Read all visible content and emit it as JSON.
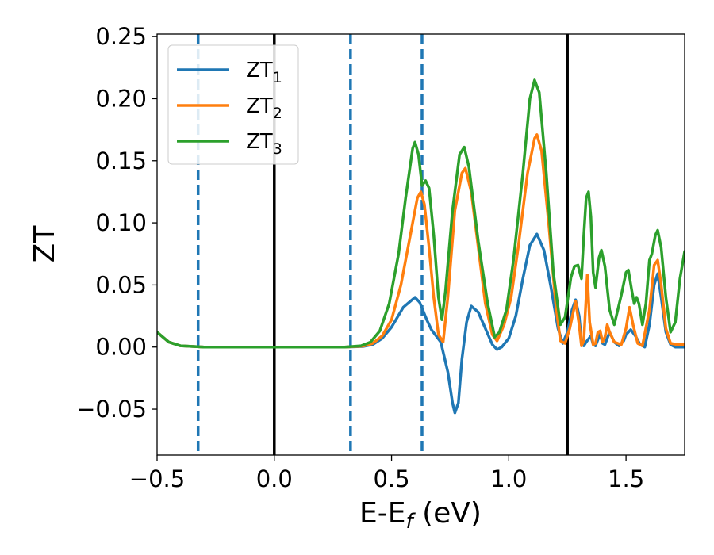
{
  "chart_data": {
    "type": "line",
    "xlabel": "E-E",
    "xlabel_sub": "f",
    "xlabel_unit": " (eV)",
    "ylabel": "ZT",
    "xlim": [
      -0.5,
      1.75
    ],
    "ylim": [
      -0.087,
      0.252
    ],
    "xticks": [
      -0.5,
      0.0,
      0.5,
      1.0,
      1.5
    ],
    "xtick_labels": [
      "−0.5",
      "0.0",
      "0.5",
      "1.0",
      "1.5"
    ],
    "yticks": [
      -0.05,
      0.0,
      0.05,
      0.1,
      0.15,
      0.2,
      0.25
    ],
    "ytick_labels": [
      "−0.05",
      "0.00",
      "0.05",
      "0.10",
      "0.15",
      "0.20",
      "0.25"
    ],
    "grid": false,
    "legend_position": "top-left",
    "vlines": [
      {
        "x": -0.325,
        "style": "dashed",
        "color": "#1f77b4"
      },
      {
        "x": 0.0,
        "style": "solid",
        "color": "#000000"
      },
      {
        "x": 0.325,
        "style": "dashed",
        "color": "#1f77b4"
      },
      {
        "x": 0.63,
        "style": "dashed",
        "color": "#1f77b4"
      },
      {
        "x": 1.25,
        "style": "solid",
        "color": "#000000"
      }
    ],
    "series": [
      {
        "name": "ZT",
        "subscript": "1",
        "color": "#1f77b4",
        "points": [
          [
            -0.5,
            0.012
          ],
          [
            -0.45,
            0.004
          ],
          [
            -0.4,
            0.001
          ],
          [
            -0.3,
            0.0
          ],
          [
            0.0,
            0.0
          ],
          [
            0.3,
            0.0
          ],
          [
            0.38,
            0.0005
          ],
          [
            0.42,
            0.002
          ],
          [
            0.46,
            0.007
          ],
          [
            0.5,
            0.016
          ],
          [
            0.55,
            0.032
          ],
          [
            0.6,
            0.04
          ],
          [
            0.62,
            0.036
          ],
          [
            0.65,
            0.022
          ],
          [
            0.67,
            0.014
          ],
          [
            0.69,
            0.009
          ],
          [
            0.71,
            0.004
          ],
          [
            0.74,
            -0.02
          ],
          [
            0.76,
            -0.045
          ],
          [
            0.77,
            -0.053
          ],
          [
            0.785,
            -0.045
          ],
          [
            0.8,
            -0.01
          ],
          [
            0.82,
            0.02
          ],
          [
            0.84,
            0.033
          ],
          [
            0.87,
            0.028
          ],
          [
            0.9,
            0.015
          ],
          [
            0.93,
            0.002
          ],
          [
            0.95,
            -0.002
          ],
          [
            0.97,
            0.0
          ],
          [
            1.0,
            0.007
          ],
          [
            1.03,
            0.025
          ],
          [
            1.06,
            0.055
          ],
          [
            1.09,
            0.082
          ],
          [
            1.12,
            0.091
          ],
          [
            1.15,
            0.078
          ],
          [
            1.18,
            0.048
          ],
          [
            1.21,
            0.015
          ],
          [
            1.23,
            0.003
          ],
          [
            1.25,
            0.012
          ],
          [
            1.27,
            0.03
          ],
          [
            1.285,
            0.038
          ],
          [
            1.3,
            0.025
          ],
          [
            1.31,
            0.004
          ],
          [
            1.32,
            0.001
          ],
          [
            1.33,
            0.004
          ],
          [
            1.35,
            0.009
          ],
          [
            1.36,
            0.002
          ],
          [
            1.37,
            0.001
          ],
          [
            1.38,
            0.006
          ],
          [
            1.39,
            0.011
          ],
          [
            1.4,
            0.003
          ],
          [
            1.41,
            0.002
          ],
          [
            1.43,
            0.012
          ],
          [
            1.45,
            0.004
          ],
          [
            1.47,
            0.001
          ],
          [
            1.49,
            0.005
          ],
          [
            1.5,
            0.01
          ],
          [
            1.52,
            0.014
          ],
          [
            1.54,
            0.009
          ],
          [
            1.56,
            0.002
          ],
          [
            1.58,
            0.0
          ],
          [
            1.6,
            0.018
          ],
          [
            1.62,
            0.05
          ],
          [
            1.635,
            0.059
          ],
          [
            1.65,
            0.04
          ],
          [
            1.67,
            0.012
          ],
          [
            1.69,
            0.002
          ],
          [
            1.71,
            0.0
          ],
          [
            1.75,
            0.0
          ]
        ]
      },
      {
        "name": "ZT",
        "subscript": "2",
        "color": "#ff7f0e",
        "points": [
          [
            -0.5,
            0.012
          ],
          [
            -0.45,
            0.004
          ],
          [
            -0.4,
            0.001
          ],
          [
            -0.3,
            0.0
          ],
          [
            0.0,
            0.0
          ],
          [
            0.3,
            0.0
          ],
          [
            0.38,
            0.0008
          ],
          [
            0.42,
            0.003
          ],
          [
            0.46,
            0.009
          ],
          [
            0.5,
            0.022
          ],
          [
            0.54,
            0.05
          ],
          [
            0.58,
            0.09
          ],
          [
            0.61,
            0.12
          ],
          [
            0.625,
            0.125
          ],
          [
            0.64,
            0.115
          ],
          [
            0.66,
            0.08
          ],
          [
            0.68,
            0.04
          ],
          [
            0.7,
            0.01
          ],
          [
            0.72,
            0.004
          ],
          [
            0.74,
            0.04
          ],
          [
            0.77,
            0.11
          ],
          [
            0.8,
            0.14
          ],
          [
            0.815,
            0.144
          ],
          [
            0.84,
            0.125
          ],
          [
            0.87,
            0.08
          ],
          [
            0.9,
            0.035
          ],
          [
            0.93,
            0.01
          ],
          [
            0.95,
            0.005
          ],
          [
            0.98,
            0.018
          ],
          [
            1.01,
            0.04
          ],
          [
            1.04,
            0.08
          ],
          [
            1.08,
            0.14
          ],
          [
            1.11,
            0.168
          ],
          [
            1.12,
            0.171
          ],
          [
            1.14,
            0.158
          ],
          [
            1.17,
            0.1
          ],
          [
            1.2,
            0.035
          ],
          [
            1.22,
            0.005
          ],
          [
            1.24,
            0.003
          ],
          [
            1.26,
            0.015
          ],
          [
            1.285,
            0.037
          ],
          [
            1.3,
            0.018
          ],
          [
            1.31,
            0.001
          ],
          [
            1.32,
            0.005
          ],
          [
            1.335,
            0.058
          ],
          [
            1.345,
            0.02
          ],
          [
            1.36,
            0.002
          ],
          [
            1.37,
            0.003
          ],
          [
            1.38,
            0.012
          ],
          [
            1.39,
            0.013
          ],
          [
            1.4,
            0.004
          ],
          [
            1.41,
            0.008
          ],
          [
            1.42,
            0.018
          ],
          [
            1.43,
            0.012
          ],
          [
            1.45,
            0.004
          ],
          [
            1.48,
            0.002
          ],
          [
            1.5,
            0.015
          ],
          [
            1.515,
            0.032
          ],
          [
            1.53,
            0.018
          ],
          [
            1.55,
            0.003
          ],
          [
            1.57,
            0.001
          ],
          [
            1.6,
            0.03
          ],
          [
            1.62,
            0.066
          ],
          [
            1.635,
            0.07
          ],
          [
            1.65,
            0.05
          ],
          [
            1.67,
            0.015
          ],
          [
            1.69,
            0.003
          ],
          [
            1.72,
            0.002
          ],
          [
            1.75,
            0.002
          ]
        ]
      },
      {
        "name": "ZT",
        "subscript": "3",
        "color": "#2ca02c",
        "points": [
          [
            -0.5,
            0.012
          ],
          [
            -0.45,
            0.004
          ],
          [
            -0.4,
            0.001
          ],
          [
            -0.3,
            0.0
          ],
          [
            0.0,
            0.0
          ],
          [
            0.3,
            0.0
          ],
          [
            0.37,
            0.001
          ],
          [
            0.41,
            0.004
          ],
          [
            0.45,
            0.013
          ],
          [
            0.49,
            0.035
          ],
          [
            0.53,
            0.075
          ],
          [
            0.56,
            0.12
          ],
          [
            0.59,
            0.16
          ],
          [
            0.6,
            0.165
          ],
          [
            0.615,
            0.155
          ],
          [
            0.63,
            0.13
          ],
          [
            0.645,
            0.134
          ],
          [
            0.66,
            0.128
          ],
          [
            0.68,
            0.09
          ],
          [
            0.7,
            0.04
          ],
          [
            0.715,
            0.022
          ],
          [
            0.73,
            0.045
          ],
          [
            0.76,
            0.11
          ],
          [
            0.79,
            0.155
          ],
          [
            0.81,
            0.161
          ],
          [
            0.83,
            0.145
          ],
          [
            0.87,
            0.085
          ],
          [
            0.91,
            0.035
          ],
          [
            0.94,
            0.008
          ],
          [
            0.96,
            0.012
          ],
          [
            0.99,
            0.03
          ],
          [
            1.02,
            0.07
          ],
          [
            1.06,
            0.14
          ],
          [
            1.09,
            0.2
          ],
          [
            1.11,
            0.215
          ],
          [
            1.13,
            0.205
          ],
          [
            1.16,
            0.14
          ],
          [
            1.19,
            0.06
          ],
          [
            1.22,
            0.018
          ],
          [
            1.24,
            0.024
          ],
          [
            1.265,
            0.056
          ],
          [
            1.28,
            0.065
          ],
          [
            1.295,
            0.066
          ],
          [
            1.31,
            0.055
          ],
          [
            1.32,
            0.09
          ],
          [
            1.33,
            0.12
          ],
          [
            1.34,
            0.125
          ],
          [
            1.35,
            0.105
          ],
          [
            1.36,
            0.06
          ],
          [
            1.37,
            0.048
          ],
          [
            1.385,
            0.072
          ],
          [
            1.395,
            0.078
          ],
          [
            1.41,
            0.065
          ],
          [
            1.43,
            0.03
          ],
          [
            1.45,
            0.018
          ],
          [
            1.48,
            0.042
          ],
          [
            1.5,
            0.06
          ],
          [
            1.51,
            0.062
          ],
          [
            1.525,
            0.045
          ],
          [
            1.535,
            0.035
          ],
          [
            1.545,
            0.04
          ],
          [
            1.555,
            0.035
          ],
          [
            1.57,
            0.018
          ],
          [
            1.585,
            0.035
          ],
          [
            1.6,
            0.07
          ],
          [
            1.61,
            0.075
          ],
          [
            1.625,
            0.09
          ],
          [
            1.635,
            0.094
          ],
          [
            1.65,
            0.08
          ],
          [
            1.67,
            0.04
          ],
          [
            1.69,
            0.012
          ],
          [
            1.71,
            0.02
          ],
          [
            1.73,
            0.055
          ],
          [
            1.75,
            0.077
          ]
        ]
      }
    ]
  }
}
